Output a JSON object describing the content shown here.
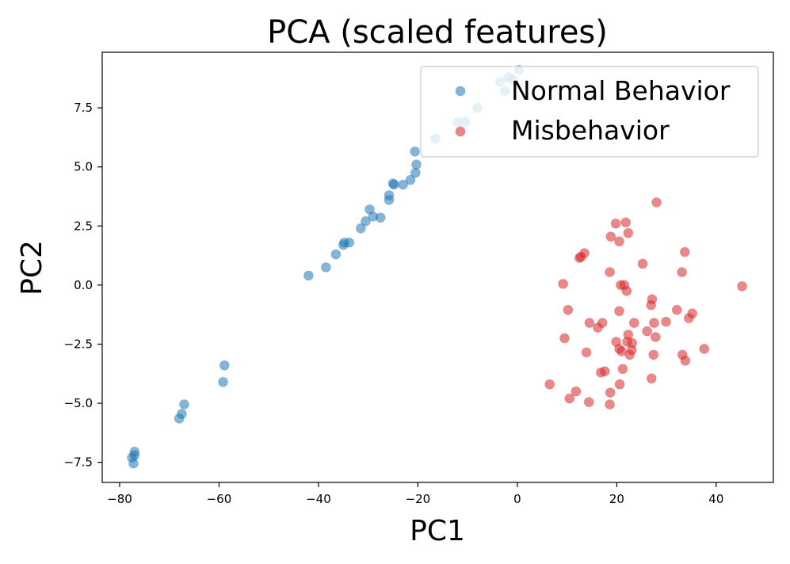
{
  "chart_data": {
    "type": "scatter",
    "title": "PCA (scaled features)",
    "xlabel": "PC1",
    "ylabel": "PC2",
    "xlim": [
      -83.5,
      51.5
    ],
    "ylim": [
      -8.35,
      9.85
    ],
    "xticks": [
      -80,
      -60,
      -40,
      -20,
      0,
      20,
      40
    ],
    "yticks": [
      -7.5,
      -5.0,
      -2.5,
      0.0,
      2.5,
      5.0,
      7.5
    ],
    "xtick_labels": [
      "−80",
      "−60",
      "−40",
      "−20",
      "0",
      "20",
      "40"
    ],
    "ytick_labels": [
      "−7.5",
      "−5.0",
      "−2.5",
      "0.0",
      "2.5",
      "5.0",
      "7.5"
    ],
    "grid": false,
    "legend_position": "top-right",
    "series": [
      {
        "name": "Normal Behavior",
        "color": "#1f77b4",
        "points": [
          [
            -77.5,
            -7.3
          ],
          [
            -77.2,
            -7.55
          ],
          [
            -77.0,
            -7.2
          ],
          [
            -77.0,
            -7.05
          ],
          [
            -68.0,
            -5.65
          ],
          [
            -67.5,
            -5.45
          ],
          [
            -67.0,
            -5.05
          ],
          [
            -59.2,
            -4.1
          ],
          [
            -58.9,
            -3.4
          ],
          [
            -42.0,
            0.4
          ],
          [
            -38.5,
            0.75
          ],
          [
            -36.5,
            1.3
          ],
          [
            -35.0,
            1.7
          ],
          [
            -34.8,
            1.8
          ],
          [
            -33.8,
            1.8
          ],
          [
            -31.5,
            2.4
          ],
          [
            -30.5,
            2.7
          ],
          [
            -29.7,
            3.2
          ],
          [
            -29.0,
            2.9
          ],
          [
            -27.5,
            2.85
          ],
          [
            -25.8,
            3.6
          ],
          [
            -25.8,
            3.8
          ],
          [
            -25.0,
            4.3
          ],
          [
            -24.8,
            4.25
          ],
          [
            -23.0,
            4.25
          ],
          [
            -21.5,
            4.45
          ],
          [
            -20.5,
            4.75
          ],
          [
            -20.3,
            5.1
          ],
          [
            -20.6,
            5.65
          ],
          [
            -16.5,
            6.2
          ],
          [
            -12.0,
            6.9
          ],
          [
            -10.5,
            6.9
          ],
          [
            -8.0,
            7.5
          ],
          [
            -3.5,
            8.6
          ],
          [
            -2.5,
            8.2
          ],
          [
            -1.8,
            8.8
          ],
          [
            -1.0,
            8.7
          ],
          [
            0.3,
            9.1
          ]
        ]
      },
      {
        "name": "Misbehavior",
        "color": "#d62728",
        "points": [
          [
            28.0,
            3.5
          ],
          [
            19.8,
            2.6
          ],
          [
            21.8,
            2.65
          ],
          [
            22.3,
            2.2
          ],
          [
            18.8,
            2.05
          ],
          [
            20.5,
            1.85
          ],
          [
            13.5,
            1.35
          ],
          [
            12.5,
            1.15
          ],
          [
            12.8,
            1.2
          ],
          [
            25.2,
            0.9
          ],
          [
            33.7,
            1.4
          ],
          [
            33.1,
            0.55
          ],
          [
            18.6,
            0.55
          ],
          [
            9.2,
            0.05
          ],
          [
            20.8,
            0.0
          ],
          [
            21.5,
            0.0
          ],
          [
            22.0,
            -0.25
          ],
          [
            45.2,
            -0.05
          ],
          [
            27.1,
            -0.6
          ],
          [
            10.2,
            -1.05
          ],
          [
            20.5,
            -1.1
          ],
          [
            26.9,
            -0.85
          ],
          [
            32.1,
            -1.05
          ],
          [
            35.2,
            -1.2
          ],
          [
            34.5,
            -1.4
          ],
          [
            14.5,
            -1.6
          ],
          [
            16.2,
            -1.8
          ],
          [
            17.1,
            -1.6
          ],
          [
            23.5,
            -1.6
          ],
          [
            27.5,
            -1.6
          ],
          [
            29.9,
            -1.55
          ],
          [
            26.1,
            -1.95
          ],
          [
            22.3,
            -2.1
          ],
          [
            27.8,
            -2.2
          ],
          [
            9.5,
            -2.25
          ],
          [
            19.9,
            -2.4
          ],
          [
            22.1,
            -2.4
          ],
          [
            23.1,
            -2.45
          ],
          [
            20.5,
            -2.7
          ],
          [
            21.0,
            -2.8
          ],
          [
            22.6,
            -2.95
          ],
          [
            23.0,
            -2.75
          ],
          [
            13.9,
            -2.85
          ],
          [
            37.6,
            -2.7
          ],
          [
            33.2,
            -2.95
          ],
          [
            27.4,
            -2.95
          ],
          [
            33.8,
            -3.2
          ],
          [
            21.2,
            -3.55
          ],
          [
            17.6,
            -3.65
          ],
          [
            16.8,
            -3.7
          ],
          [
            27.0,
            -3.95
          ],
          [
            6.5,
            -4.2
          ],
          [
            20.6,
            -4.2
          ],
          [
            11.8,
            -4.5
          ],
          [
            18.7,
            -4.55
          ],
          [
            10.5,
            -4.8
          ],
          [
            14.4,
            -4.95
          ],
          [
            18.6,
            -5.05
          ]
        ]
      }
    ]
  }
}
